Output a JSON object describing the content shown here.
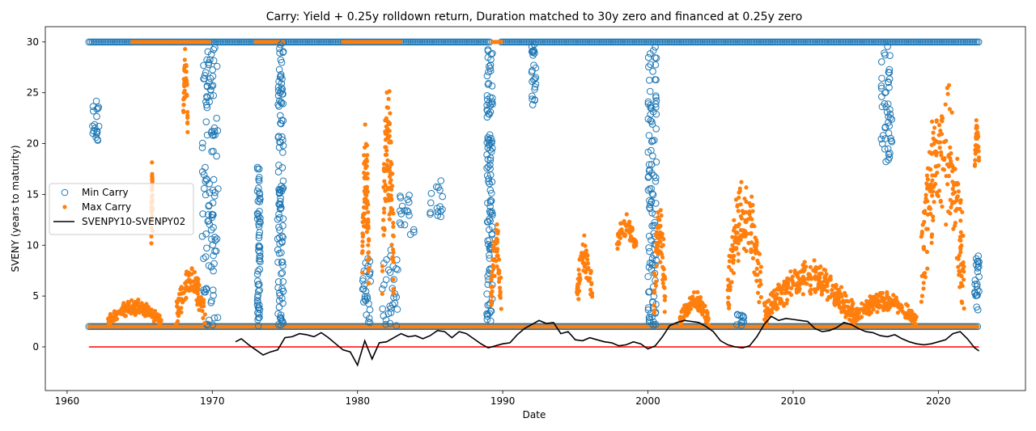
{
  "chart_data": {
    "type": "scatter",
    "title": "Carry: Yield + 0.25y rolldown return, Duration matched to 30y zero and financed at 0.25y zero",
    "xlabel": "Date",
    "ylabel": "SVENY (years to maturity)",
    "xlim": [
      1958.5,
      2026.0
    ],
    "ylim": [
      -4.3,
      31.5
    ],
    "x_ticks": [
      1960,
      1970,
      1980,
      1990,
      2000,
      2010,
      2020
    ],
    "y_ticks": [
      0,
      5,
      10,
      15,
      20,
      25,
      30
    ],
    "x_tick_labels": [
      "1960",
      "1970",
      "1980",
      "1990",
      "2000",
      "2010",
      "2020"
    ],
    "y_tick_labels": [
      "0",
      "5",
      "10",
      "15",
      "20",
      "25",
      "30"
    ],
    "legend": {
      "position": "center-left",
      "entries": [
        "Min Carry",
        "Max Carry",
        "SVENPY10-SVENPY02"
      ]
    },
    "colors": {
      "min_carry": "#1f77b4",
      "max_carry": "#ff7f0e",
      "spread": "#000000",
      "zero_line": "#ff0000"
    },
    "series": [
      {
        "name": "Min Carry",
        "marker": "hollow-circle",
        "bands": [
          {
            "x": [
              1961.5,
              1989.2
            ],
            "y": 30
          },
          {
            "x": [
              1989.9,
              2022.8
            ],
            "y": 30
          },
          {
            "x": [
              1961.5,
              2022.8
            ],
            "y": 2
          }
        ],
        "episodes": [
          {
            "x": [
              1961.7,
              1962.2
            ],
            "y": [
              19.5,
              24.2
            ]
          },
          {
            "x": [
              1969.3,
              1970.4
            ],
            "y": [
              2,
              29.5
            ]
          },
          {
            "x": [
              1973.1,
              1973.3
            ],
            "y": [
              2,
              17.8
            ]
          },
          {
            "x": [
              1974.5,
              1974.9
            ],
            "y": [
              2,
              30
            ]
          },
          {
            "x": [
              1980.3,
              1980.9
            ],
            "y": [
              2,
              9
            ]
          },
          {
            "x": [
              1981.7,
              1982.8
            ],
            "y": [
              2,
              9.8
            ]
          },
          {
            "x": [
              1982.9,
              1984.0
            ],
            "y": [
              10.8,
              15.2
            ]
          },
          {
            "x": [
              1985.0,
              1986.0
            ],
            "y": [
              12.8,
              16.8
            ]
          },
          {
            "x": [
              1988.9,
              1989.3
            ],
            "y": [
              2,
              30
            ]
          },
          {
            "x": [
              1992.0,
              1992.3
            ],
            "y": [
              23.8,
              30
            ]
          },
          {
            "x": [
              2000.0,
              2000.6
            ],
            "y": [
              2,
              30
            ]
          },
          {
            "x": [
              2006.0,
              2006.6
            ],
            "y": [
              2,
              3.2
            ]
          },
          {
            "x": [
              2016.0,
              2016.8
            ],
            "y": [
              18.2,
              30
            ]
          },
          {
            "x": [
              2022.5,
              2022.8
            ],
            "y": [
              3.5,
              9.5
            ]
          }
        ]
      },
      {
        "name": "Max Carry",
        "marker": "filled-dot",
        "bands": [
          {
            "x": [
              1961.5,
              2022.8
            ],
            "y": 2
          },
          {
            "x": [
              1964.5,
              1969.8
            ],
            "y": 30
          },
          {
            "x": [
              1973.0,
              1975.0
            ],
            "y": 30
          },
          {
            "x": [
              1979.0,
              1983.0
            ],
            "y": 30
          },
          {
            "x": [
              1989.3,
              1989.9
            ],
            "y": 30
          }
        ],
        "episodes": [
          {
            "x": [
              1962.8,
              1966.5
            ],
            "y": [
              2,
              4.8
            ]
          },
          {
            "x": [
              1965.8,
              1965.9
            ],
            "y": [
              9.7,
              19.5
            ]
          },
          {
            "x": [
              1967.5,
              1969.5
            ],
            "y": [
              2,
              8.3
            ]
          },
          {
            "x": [
              1968.0,
              1968.3
            ],
            "y": [
              20.7,
              30
            ]
          },
          {
            "x": [
              1980.3,
              1980.8
            ],
            "y": [
              3,
              22.8
            ]
          },
          {
            "x": [
              1981.7,
              1982.5
            ],
            "y": [
              3,
              28
            ]
          },
          {
            "x": [
              1989.2,
              1989.9
            ],
            "y": [
              3,
              12.8
            ]
          },
          {
            "x": [
              1995.1,
              1996.2
            ],
            "y": [
              3.5,
              11.3
            ]
          },
          {
            "x": [
              1997.8,
              1999.2
            ],
            "y": [
              9,
              13.2
            ]
          },
          {
            "x": [
              2000.4,
              2001.2
            ],
            "y": [
              2,
              15.5
            ]
          },
          {
            "x": [
              2002.2,
              2004.2
            ],
            "y": [
              2,
              5.6
            ]
          },
          {
            "x": [
              2005.5,
              2007.8
            ],
            "y": [
              3,
              17.8
            ]
          },
          {
            "x": [
              2008.0,
              2014.2
            ],
            "y": [
              2,
              8.8
            ]
          },
          {
            "x": [
              2014.0,
              2018.5
            ],
            "y": [
              2,
              5.5
            ]
          },
          {
            "x": [
              2018.8,
              2021.8
            ],
            "y": [
              2,
              28
            ]
          },
          {
            "x": [
              2022.5,
              2022.8
            ],
            "y": [
              16.8,
              23.3
            ]
          }
        ]
      },
      {
        "name": "SVENPY10-SVENPY02",
        "type": "line",
        "x": [
          1971.6,
          1972.0,
          1972.5,
          1973.0,
          1973.5,
          1974.0,
          1974.5,
          1975.0,
          1975.5,
          1976.0,
          1976.5,
          1977.0,
          1977.5,
          1978.0,
          1978.5,
          1979.0,
          1979.5,
          1980.0,
          1980.5,
          1981.0,
          1981.5,
          1982.0,
          1982.5,
          1983.0,
          1983.5,
          1984.0,
          1984.5,
          1985.0,
          1985.5,
          1986.0,
          1986.5,
          1987.0,
          1987.5,
          1988.0,
          1988.5,
          1989.0,
          1989.5,
          1990.0,
          1990.5,
          1991.0,
          1991.5,
          1992.0,
          1992.5,
          1993.0,
          1993.5,
          1994.0,
          1994.5,
          1995.0,
          1995.5,
          1996.0,
          1996.5,
          1997.0,
          1997.5,
          1998.0,
          1998.5,
          1999.0,
          1999.5,
          2000.0,
          2000.5,
          2001.0,
          2001.5,
          2002.0,
          2002.5,
          2003.0,
          2003.5,
          2004.0,
          2004.5,
          2005.0,
          2005.5,
          2006.0,
          2006.5,
          2007.0,
          2007.5,
          2008.0,
          2008.5,
          2009.0,
          2009.5,
          2010.0,
          2010.5,
          2011.0,
          2011.5,
          2012.0,
          2012.5,
          2013.0,
          2013.5,
          2014.0,
          2014.5,
          2015.0,
          2015.5,
          2016.0,
          2016.5,
          2017.0,
          2017.5,
          2018.0,
          2018.5,
          2019.0,
          2019.5,
          2020.0,
          2020.5,
          2021.0,
          2021.5,
          2022.0,
          2022.5,
          2022.8
        ],
        "y": [
          0.5,
          0.8,
          0.2,
          -0.3,
          -0.8,
          -0.5,
          -0.3,
          0.9,
          1.0,
          1.3,
          1.2,
          1.0,
          1.4,
          0.9,
          0.3,
          -0.3,
          -0.5,
          -1.8,
          0.6,
          -1.2,
          0.4,
          0.5,
          0.9,
          1.3,
          1.0,
          1.1,
          0.8,
          1.1,
          1.6,
          1.5,
          0.9,
          1.5,
          1.3,
          0.8,
          0.3,
          -0.1,
          0.1,
          0.3,
          0.4,
          1.2,
          1.8,
          2.2,
          2.6,
          2.3,
          2.4,
          1.3,
          1.5,
          0.7,
          0.6,
          0.9,
          0.7,
          0.5,
          0.4,
          0.1,
          0.2,
          0.5,
          0.3,
          -0.2,
          0.1,
          1.0,
          2.1,
          2.4,
          2.6,
          2.5,
          2.4,
          2.0,
          1.5,
          0.6,
          0.2,
          0.0,
          -0.1,
          0.1,
          1.0,
          2.2,
          3.0,
          2.6,
          2.8,
          2.7,
          2.6,
          2.5,
          1.8,
          1.5,
          1.6,
          1.9,
          2.4,
          2.2,
          1.8,
          1.5,
          1.4,
          1.1,
          1.0,
          1.2,
          0.8,
          0.5,
          0.3,
          0.2,
          0.3,
          0.5,
          0.7,
          1.3,
          1.5,
          0.8,
          -0.1,
          -0.4
        ]
      },
      {
        "name": "zero line",
        "type": "hline",
        "x": [
          1961.5,
          2022.8
        ],
        "y": 0
      }
    ]
  }
}
